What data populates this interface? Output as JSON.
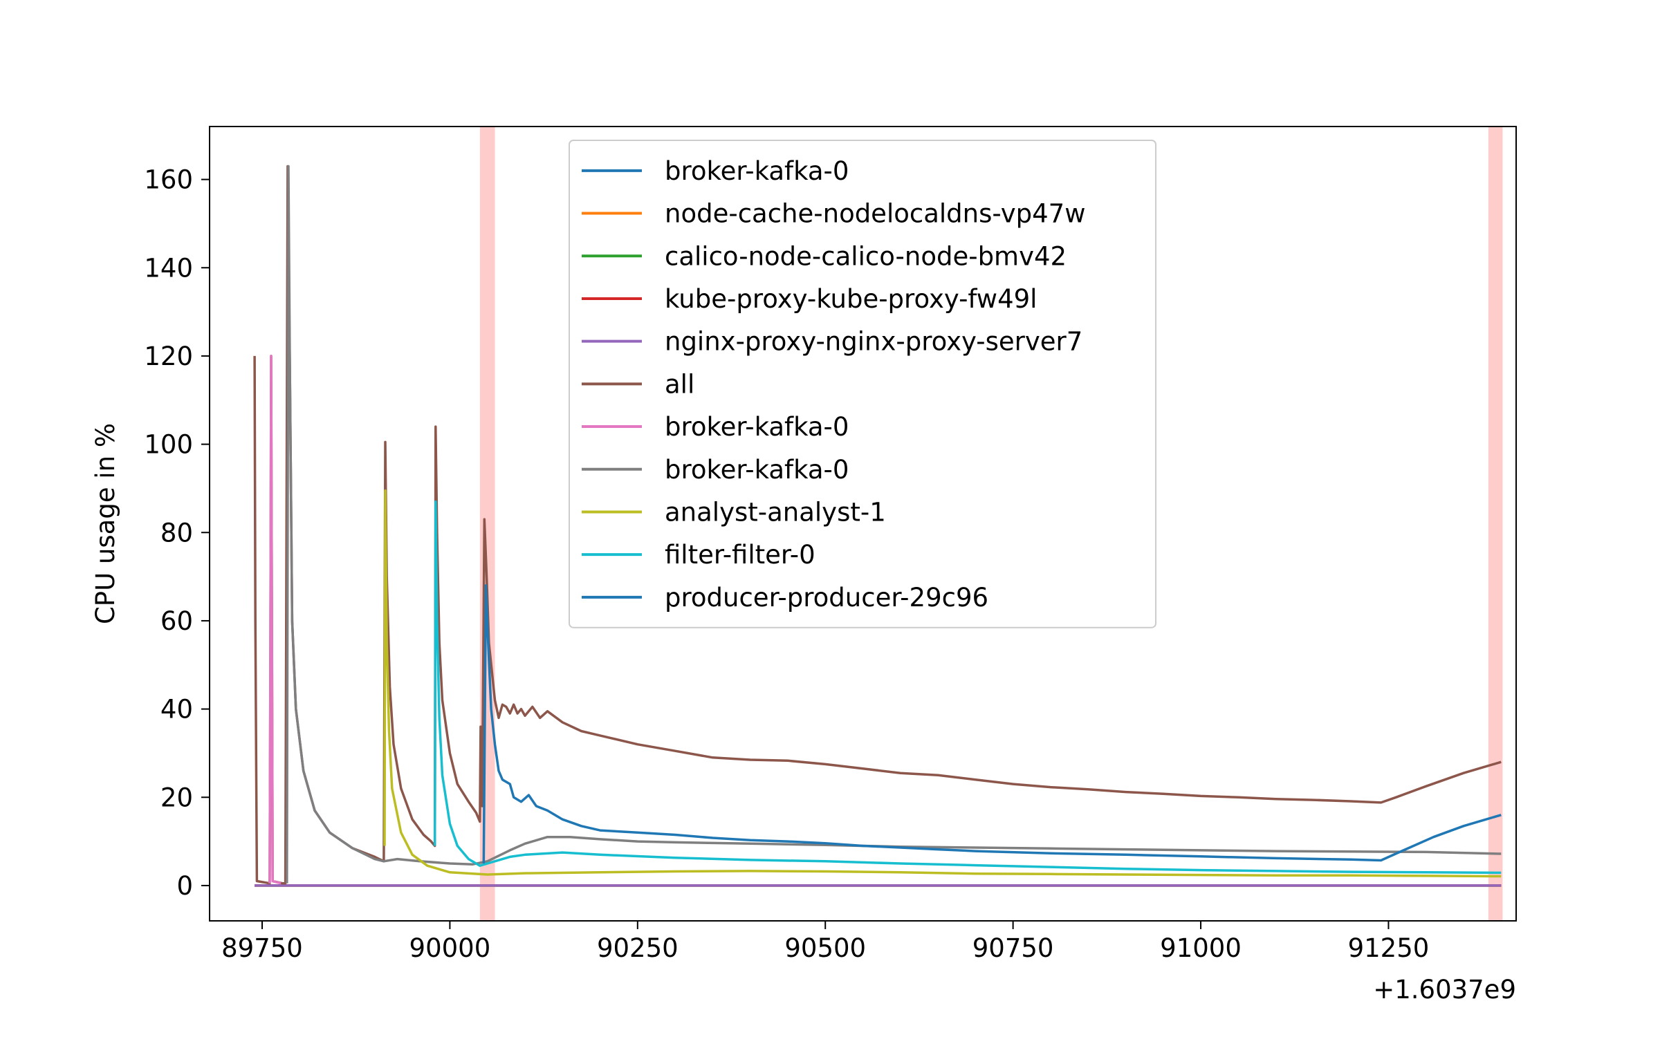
{
  "chart_data": {
    "type": "line",
    "xlabel": "",
    "ylabel": "CPU usage in %",
    "x_offset_label": "+1.6037e9",
    "xlim": [
      89680,
      91420
    ],
    "ylim": [
      -8,
      172
    ],
    "xticks": [
      89750,
      90000,
      90250,
      90500,
      90750,
      91000,
      91250
    ],
    "yticks": [
      0,
      20,
      40,
      60,
      80,
      100,
      120,
      140,
      160
    ],
    "grid": false,
    "legend_position": "top-center",
    "highlight_bands": [
      {
        "x0": 90040,
        "x1": 90060,
        "color": "#ffcccc"
      },
      {
        "x0": 91383,
        "x1": 91402,
        "color": "#ffcccc"
      }
    ],
    "series": [
      {
        "name": "broker-kafka-0",
        "color": "#1f77b4",
        "points": [
          [
            89740,
            0
          ],
          [
            91400,
            0
          ]
        ]
      },
      {
        "name": "node-cache-nodelocaldns-vp47w",
        "color": "#ff7f0e",
        "points": [
          [
            89740,
            0
          ],
          [
            91400,
            0
          ]
        ]
      },
      {
        "name": "calico-node-calico-node-bmv42",
        "color": "#2ca02c",
        "points": [
          [
            89740,
            0
          ],
          [
            91400,
            0
          ]
        ]
      },
      {
        "name": "kube-proxy-kube-proxy-fw49l",
        "color": "#d62728",
        "points": [
          [
            89740,
            0
          ],
          [
            91400,
            0
          ]
        ]
      },
      {
        "name": "nginx-proxy-nginx-proxy-server7",
        "color": "#9467bd",
        "points": [
          [
            89740,
            0
          ],
          [
            91400,
            0
          ]
        ]
      },
      {
        "name": "all",
        "color": "#8c564b",
        "points": [
          [
            89740,
            120
          ],
          [
            89741,
            60
          ],
          [
            89743,
            1
          ],
          [
            89760,
            0.5
          ],
          [
            89761,
            49
          ],
          [
            89762,
            120
          ],
          [
            89764,
            1
          ],
          [
            89777,
            0.5
          ],
          [
            89781,
            0.5
          ],
          [
            89784,
            163
          ],
          [
            89787,
            115
          ],
          [
            89790,
            60
          ],
          [
            89795,
            40
          ],
          [
            89805,
            26
          ],
          [
            89820,
            17
          ],
          [
            89840,
            12
          ],
          [
            89870,
            8.5
          ],
          [
            89900,
            6.5
          ],
          [
            89912,
            5.5
          ],
          [
            89914,
            100.5
          ],
          [
            89916,
            70
          ],
          [
            89920,
            45
          ],
          [
            89925,
            32
          ],
          [
            89935,
            22
          ],
          [
            89950,
            15
          ],
          [
            89965,
            11.5
          ],
          [
            89975,
            10
          ],
          [
            89980,
            9
          ],
          [
            89981,
            104
          ],
          [
            89983,
            80
          ],
          [
            89986,
            55
          ],
          [
            89990,
            42
          ],
          [
            90000,
            30
          ],
          [
            90010,
            23
          ],
          [
            90025,
            19
          ],
          [
            90035,
            16.5
          ],
          [
            90040,
            14.5
          ],
          [
            90041,
            36
          ],
          [
            90043,
            18
          ],
          [
            90046,
            83
          ],
          [
            90049,
            70
          ],
          [
            90052,
            55
          ],
          [
            90060,
            42
          ],
          [
            90065,
            38
          ],
          [
            90070,
            41
          ],
          [
            90075,
            40.5
          ],
          [
            90080,
            39
          ],
          [
            90085,
            41
          ],
          [
            90090,
            39
          ],
          [
            90095,
            40
          ],
          [
            90100,
            38.5
          ],
          [
            90110,
            40.5
          ],
          [
            90120,
            38
          ],
          [
            90130,
            39.5
          ],
          [
            90150,
            37
          ],
          [
            90175,
            35
          ],
          [
            90200,
            34
          ],
          [
            90250,
            32
          ],
          [
            90300,
            30.5
          ],
          [
            90350,
            29
          ],
          [
            90400,
            28.5
          ],
          [
            90450,
            28.3
          ],
          [
            90500,
            27.5
          ],
          [
            90550,
            26.5
          ],
          [
            90600,
            25.5
          ],
          [
            90650,
            25
          ],
          [
            90700,
            24
          ],
          [
            90750,
            23
          ],
          [
            90800,
            22.3
          ],
          [
            90850,
            21.8
          ],
          [
            90900,
            21.2
          ],
          [
            90950,
            20.8
          ],
          [
            91000,
            20.3
          ],
          [
            91050,
            20
          ],
          [
            91100,
            19.6
          ],
          [
            91150,
            19.4
          ],
          [
            91200,
            19.1
          ],
          [
            91240,
            18.8
          ],
          [
            91260,
            20
          ],
          [
            91300,
            22.5
          ],
          [
            91350,
            25.5
          ],
          [
            91400,
            28
          ]
        ]
      },
      {
        "name": "broker-kafka-0",
        "color": "#e377c2",
        "points": [
          [
            89760,
            0.5
          ],
          [
            89761,
            49
          ],
          [
            89762,
            120
          ],
          [
            89764,
            1
          ],
          [
            89775,
            0.5
          ]
        ]
      },
      {
        "name": "broker-kafka-0",
        "color": "#7f7f7f",
        "points": [
          [
            89783,
            0.5
          ],
          [
            89785,
            163
          ],
          [
            89787,
            115
          ],
          [
            89790,
            60
          ],
          [
            89795,
            40
          ],
          [
            89805,
            26
          ],
          [
            89820,
            17
          ],
          [
            89840,
            12
          ],
          [
            89870,
            8.5
          ],
          [
            89900,
            6
          ],
          [
            89912,
            5.5
          ],
          [
            89930,
            6
          ],
          [
            89960,
            5.5
          ],
          [
            90000,
            5
          ],
          [
            90030,
            4.8
          ],
          [
            90050,
            5.5
          ],
          [
            90080,
            8
          ],
          [
            90100,
            9.5
          ],
          [
            90130,
            11
          ],
          [
            90160,
            11
          ],
          [
            90200,
            10.5
          ],
          [
            90250,
            10
          ],
          [
            90300,
            9.8
          ],
          [
            90400,
            9.5
          ],
          [
            90500,
            9.2
          ],
          [
            90600,
            8.8
          ],
          [
            90700,
            8.6
          ],
          [
            90800,
            8.4
          ],
          [
            90900,
            8.2
          ],
          [
            91000,
            8
          ],
          [
            91100,
            7.8
          ],
          [
            91200,
            7.7
          ],
          [
            91300,
            7.6
          ],
          [
            91400,
            7.2
          ]
        ]
      },
      {
        "name": "analyst-analyst-1",
        "color": "#bcbd22",
        "points": [
          [
            89913,
            9
          ],
          [
            89914,
            89.5
          ],
          [
            89916,
            55
          ],
          [
            89919,
            35
          ],
          [
            89923,
            22
          ],
          [
            89935,
            12
          ],
          [
            89950,
            7
          ],
          [
            89970,
            4.5
          ],
          [
            90000,
            3
          ],
          [
            90050,
            2.5
          ],
          [
            90100,
            2.8
          ],
          [
            90200,
            3
          ],
          [
            90300,
            3.2
          ],
          [
            90400,
            3.3
          ],
          [
            90500,
            3.2
          ],
          [
            90600,
            3
          ],
          [
            90700,
            2.7
          ],
          [
            90800,
            2.6
          ],
          [
            90900,
            2.5
          ],
          [
            91000,
            2.4
          ],
          [
            91100,
            2.3
          ],
          [
            91200,
            2.3
          ],
          [
            91300,
            2.2
          ],
          [
            91400,
            2.1
          ]
        ]
      },
      {
        "name": "filter-filter-0",
        "color": "#17becf",
        "points": [
          [
            89980,
            9
          ],
          [
            89981,
            87
          ],
          [
            89983,
            60
          ],
          [
            89986,
            38
          ],
          [
            89990,
            25
          ],
          [
            90000,
            14
          ],
          [
            90010,
            9
          ],
          [
            90025,
            6
          ],
          [
            90040,
            4.5
          ],
          [
            90060,
            5.5
          ],
          [
            90080,
            6.5
          ],
          [
            90100,
            7
          ],
          [
            90150,
            7.5
          ],
          [
            90200,
            7
          ],
          [
            90300,
            6.3
          ],
          [
            90400,
            5.8
          ],
          [
            90500,
            5.5
          ],
          [
            90600,
            5
          ],
          [
            90700,
            4.6
          ],
          [
            90800,
            4.2
          ],
          [
            90900,
            3.8
          ],
          [
            91000,
            3.5
          ],
          [
            91100,
            3.3
          ],
          [
            91200,
            3.1
          ],
          [
            91300,
            3
          ],
          [
            91400,
            2.9
          ]
        ]
      },
      {
        "name": "producer-producer-29c96",
        "color": "#1f77b4",
        "points": [
          [
            90045,
            5
          ],
          [
            90048,
            68
          ],
          [
            90051,
            55
          ],
          [
            90055,
            40
          ],
          [
            90060,
            32
          ],
          [
            90065,
            26
          ],
          [
            90070,
            24
          ],
          [
            90080,
            23
          ],
          [
            90085,
            20
          ],
          [
            90095,
            19
          ],
          [
            90105,
            20.5
          ],
          [
            90115,
            18
          ],
          [
            90130,
            17
          ],
          [
            90150,
            15
          ],
          [
            90175,
            13.5
          ],
          [
            90200,
            12.5
          ],
          [
            90250,
            12
          ],
          [
            90300,
            11.5
          ],
          [
            90350,
            10.8
          ],
          [
            90400,
            10.3
          ],
          [
            90450,
            10
          ],
          [
            90500,
            9.6
          ],
          [
            90550,
            9
          ],
          [
            90600,
            8.6
          ],
          [
            90650,
            8.2
          ],
          [
            90700,
            7.8
          ],
          [
            90800,
            7.3
          ],
          [
            90900,
            7
          ],
          [
            91000,
            6.6
          ],
          [
            91100,
            6.2
          ],
          [
            91200,
            5.9
          ],
          [
            91240,
            5.7
          ],
          [
            91270,
            8
          ],
          [
            91310,
            11
          ],
          [
            91350,
            13.5
          ],
          [
            91400,
            16
          ]
        ]
      }
    ]
  }
}
